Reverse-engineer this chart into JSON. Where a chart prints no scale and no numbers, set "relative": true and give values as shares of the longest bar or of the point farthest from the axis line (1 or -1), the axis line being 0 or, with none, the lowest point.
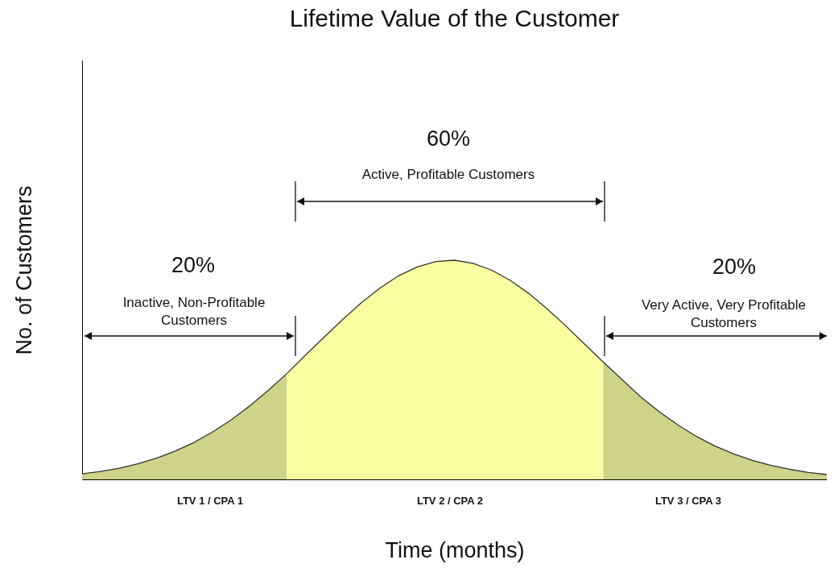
{
  "chart_data": {
    "type": "area",
    "title": "Lifetime Value of the Customer",
    "xlabel": "Time (months)",
    "ylabel": "No. of Customers",
    "relative": true,
    "categories": [
      null,
      null,
      null,
      null,
      null,
      null,
      null,
      null,
      null,
      null,
      null,
      null,
      null,
      null,
      null,
      null,
      null,
      null,
      null,
      null,
      null,
      null,
      null,
      null,
      null,
      null,
      null,
      null,
      null,
      null,
      null,
      null,
      null,
      null,
      null,
      null,
      null,
      null,
      null,
      null,
      null
    ],
    "series": [
      {
        "color": "#cfd38a",
        "values": [
          0.025,
          0.036,
          0.051,
          0.071,
          0.097,
          0.129,
          0.168,
          0.216,
          0.271,
          0.335,
          0.406,
          0.483,
          null,
          null,
          null,
          null,
          null,
          null,
          null,
          null,
          null,
          null,
          null,
          null,
          null,
          null,
          null,
          null,
          null,
          null,
          null,
          null,
          null,
          null,
          null,
          null,
          null,
          null,
          null,
          null,
          null
        ]
      },
      {
        "color": "#fafea0",
        "values": [
          null,
          null,
          null,
          null,
          null,
          null,
          null,
          null,
          null,
          null,
          null,
          0.483,
          0.567,
          0.649,
          0.73,
          0.806,
          0.873,
          0.929,
          0.969,
          0.994,
          1,
          0.986,
          0.955,
          0.908,
          0.848,
          0.777,
          0.699,
          0.617,
          0.535,
          null,
          null,
          null,
          null,
          null,
          null,
          null,
          null,
          null,
          null,
          null,
          null
        ]
      },
      {
        "color": "#cfd38a",
        "values": [
          null,
          null,
          null,
          null,
          null,
          null,
          null,
          null,
          null,
          null,
          null,
          null,
          null,
          null,
          null,
          null,
          null,
          null,
          null,
          null,
          null,
          null,
          null,
          null,
          null,
          null,
          null,
          null,
          0.535,
          0.456,
          0.377,
          0.309,
          0.249,
          0.196,
          0.152,
          0.116,
          0.087,
          0.064,
          0.046,
          0.032,
          0.022
        ]
      },
      {
        "type": "line",
        "color": "#333333",
        "values": [
          0.025,
          0.036,
          0.051,
          0.071,
          0.097,
          0.129,
          0.168,
          0.216,
          0.271,
          0.335,
          0.406,
          0.483,
          0.567,
          0.649,
          0.73,
          0.806,
          0.873,
          0.929,
          0.969,
          0.994,
          1,
          0.986,
          0.955,
          0.908,
          0.848,
          0.777,
          0.699,
          0.617,
          0.535,
          0.456,
          0.377,
          0.309,
          0.249,
          0.196,
          0.152,
          0.116,
          0.087,
          0.064,
          0.046,
          0.032,
          0.022
        ]
      }
    ],
    "annotations": [
      "60%",
      "Active, Profitable Customers",
      "20%",
      "Inactive, Non-Profitable Customers",
      "20%",
      "Very Active, Very Profitable Customers",
      "LTV 1 / CPA 1",
      "LTV 2 / CPA 2",
      "LTV 3 / CPA 3"
    ]
  }
}
